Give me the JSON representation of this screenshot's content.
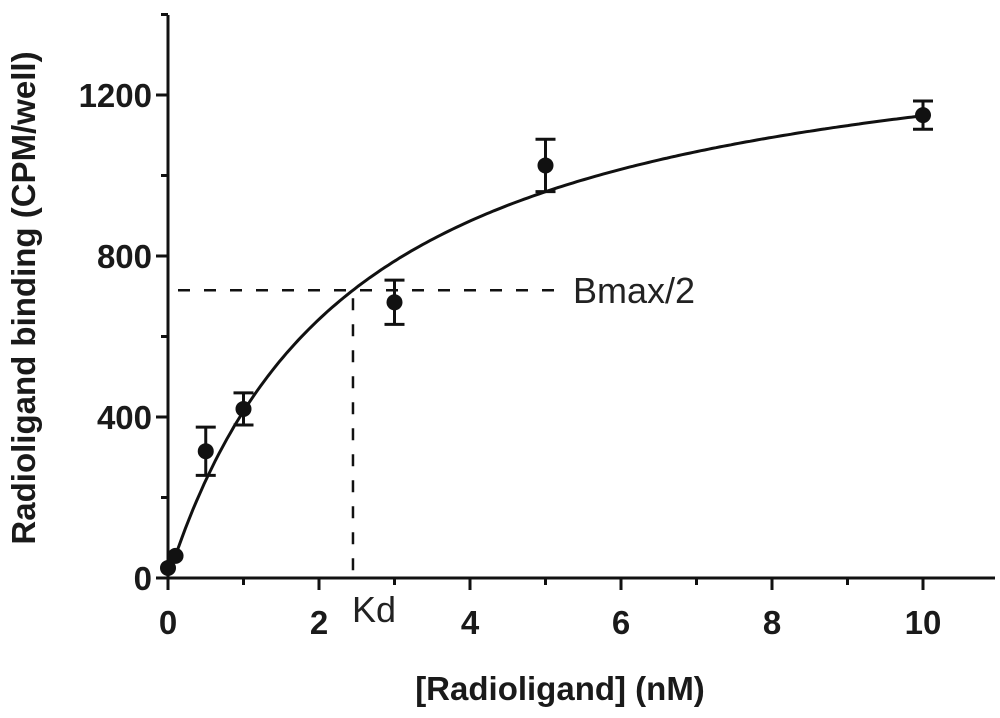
{
  "chart_data": {
    "type": "scatter",
    "title": "",
    "xlabel": "[Radioligand] (nM)",
    "ylabel": "Radioligand binding (CPM/well)",
    "xlim": [
      0,
      11
    ],
    "ylim": [
      0,
      1400
    ],
    "x_ticks": [
      0,
      2,
      4,
      6,
      8,
      10
    ],
    "y_ticks": [
      0,
      400,
      800,
      1200
    ],
    "x_tick_labels": [
      "0",
      "2",
      "4",
      "6",
      "8",
      "10"
    ],
    "y_tick_labels": [
      "0",
      "400",
      "800",
      "1200"
    ],
    "points": [
      {
        "x": 0,
        "y": 25,
        "err": 0
      },
      {
        "x": 0.1,
        "y": 55,
        "err": 0
      },
      {
        "x": 0.5,
        "y": 315,
        "err": 60
      },
      {
        "x": 1,
        "y": 420,
        "err": 40
      },
      {
        "x": 3,
        "y": 685,
        "err": 55
      },
      {
        "x": 5,
        "y": 1025,
        "err": 65
      },
      {
        "x": 10,
        "y": 1150,
        "err": 35
      }
    ],
    "fit": {
      "model": "one-site binding",
      "bmax": 1430,
      "kd": 2.45
    },
    "annotations": {
      "bmax_half_label": "Bmax/2",
      "kd_label": "Kd",
      "bmax_half_value": 715,
      "kd_value": 2.45
    },
    "grid": false,
    "legend": "none"
  }
}
